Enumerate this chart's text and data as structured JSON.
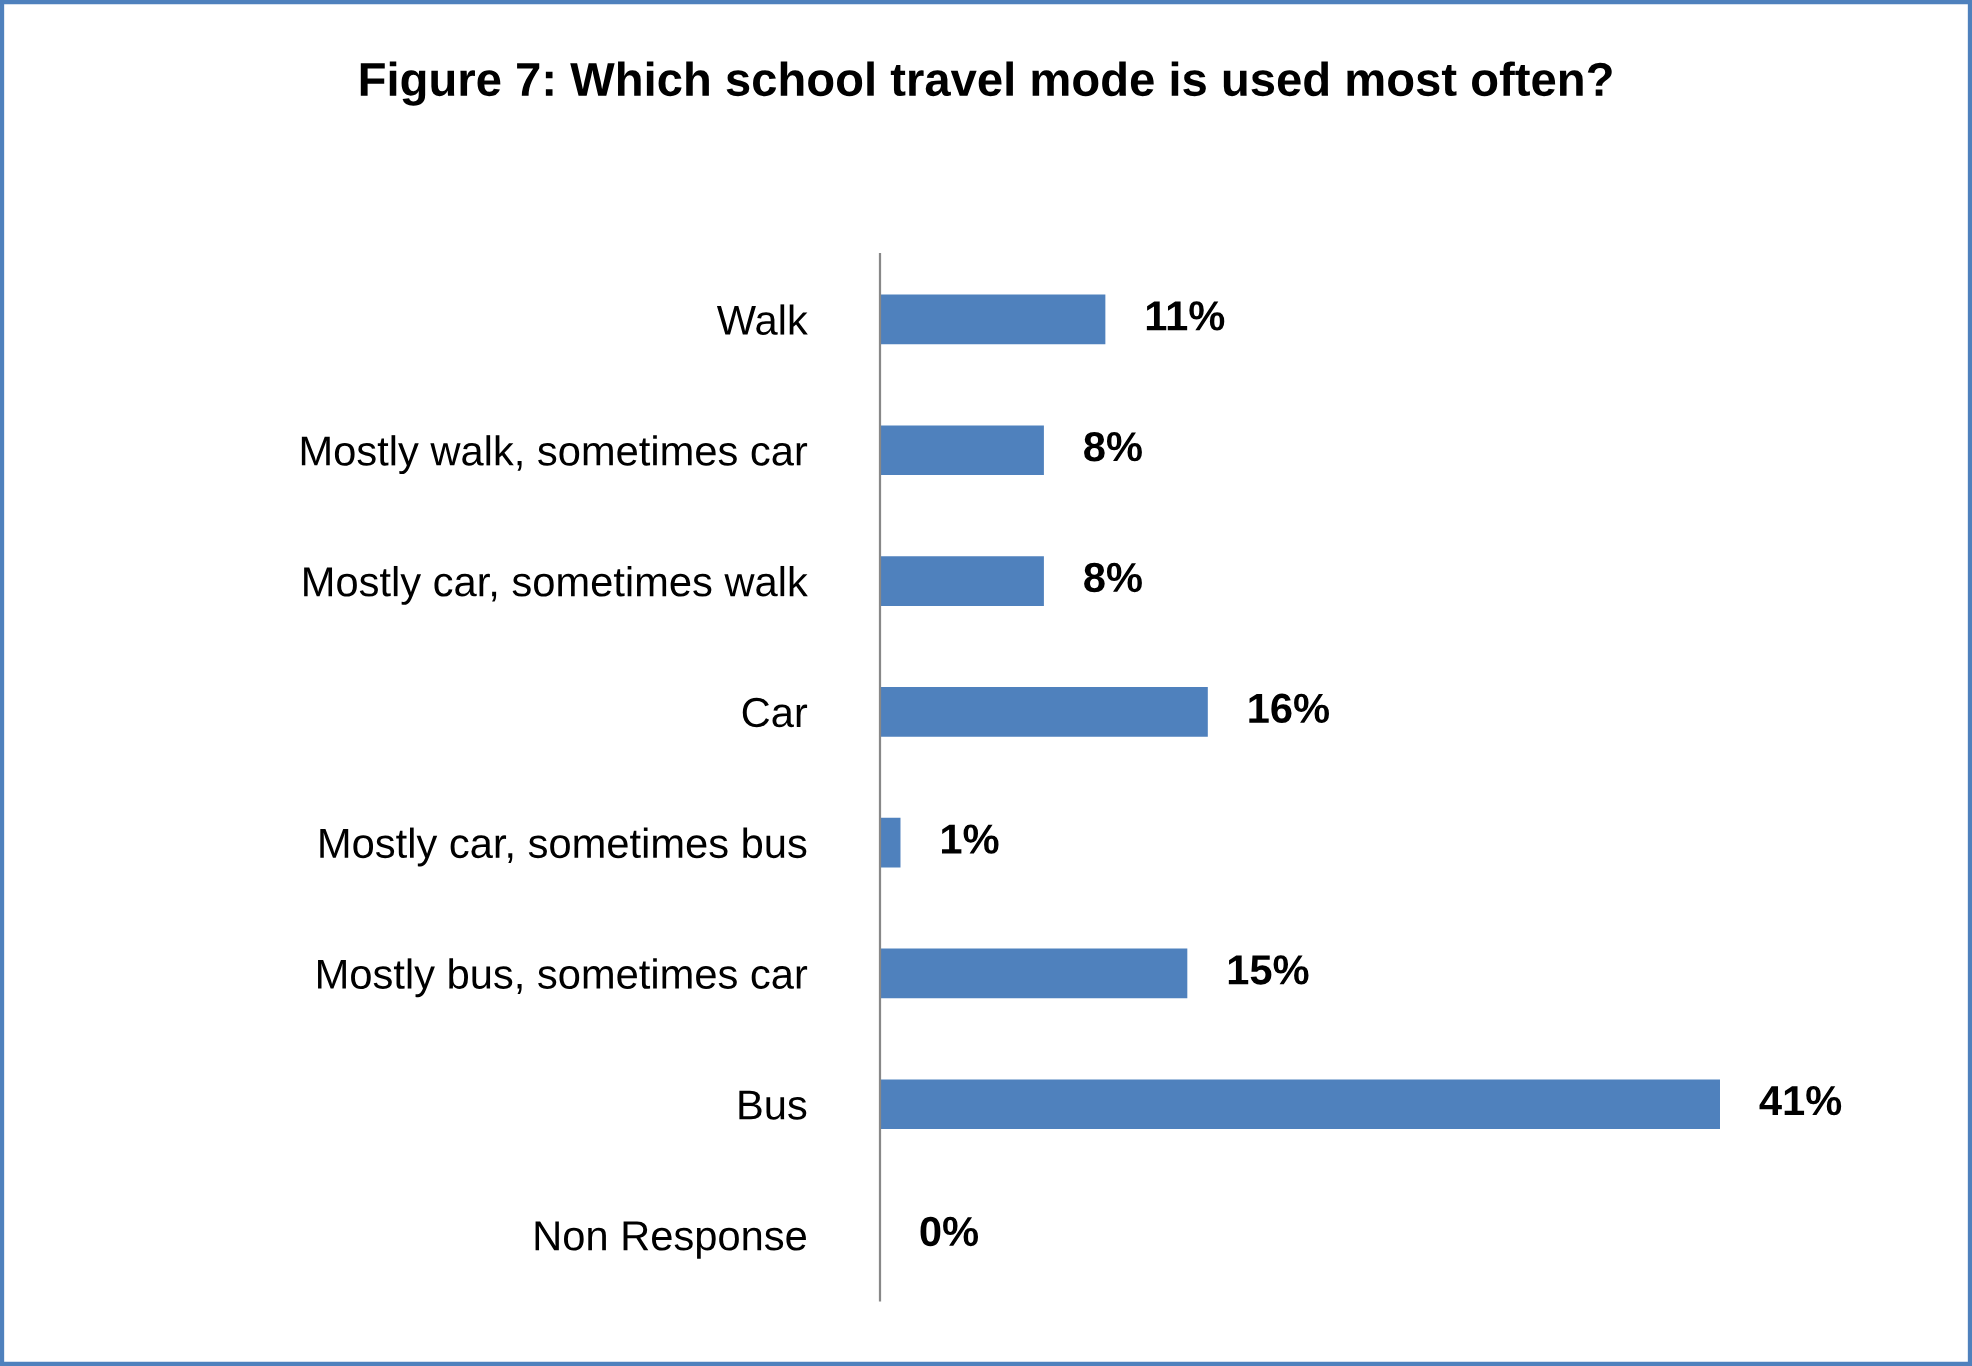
{
  "chart_data": {
    "type": "bar",
    "orientation": "horizontal",
    "title": "Figure 7: Which school travel mode is used most often?",
    "categories": [
      "Walk",
      "Mostly walk, sometimes car",
      "Mostly car, sometimes walk",
      "Car",
      "Mostly car, sometimes bus",
      "Mostly bus, sometimes car",
      "Bus",
      "Non Response"
    ],
    "values": [
      11,
      8,
      8,
      16,
      1,
      15,
      41,
      0
    ],
    "value_labels": [
      "11%",
      "8%",
      "8%",
      "16%",
      "1%",
      "15%",
      "41%",
      "0%"
    ],
    "color": "#4f81bd",
    "grid": false,
    "legend": false
  }
}
